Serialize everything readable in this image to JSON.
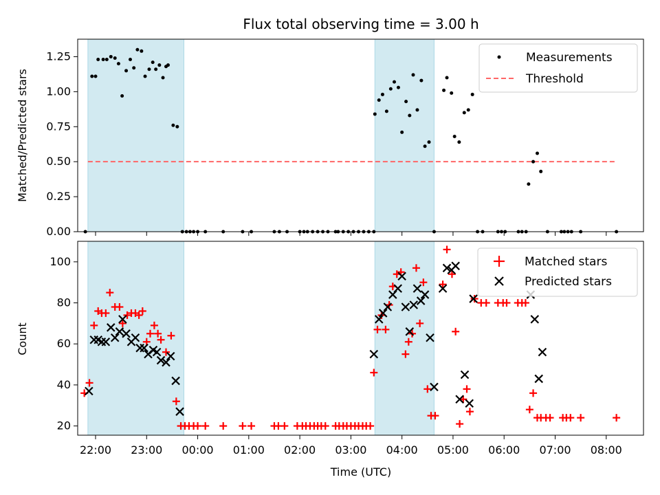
{
  "title": "Flux total observing time = 3.00 h",
  "colors": {
    "shade": "#add8e6",
    "threshold": "#ff6666",
    "matched": "#ff0000",
    "predicted": "#000000",
    "measurement": "#000000"
  },
  "chart_data": [
    {
      "type": "scatter",
      "ylabel": "Matched/Predicted stars",
      "xlim": [
        21.65,
        8.73
      ],
      "ylim": [
        0,
        1.375
      ],
      "yticks": [
        "0.00",
        "0.25",
        "0.50",
        "0.75",
        "1.00",
        "1.25"
      ],
      "legend": "top-right",
      "legend_entries": [
        "Measurements",
        "Threshold"
      ],
      "shaded_spans": [
        [
          21.85,
          23.73
        ],
        [
          3.47,
          4.63
        ]
      ],
      "threshold": {
        "name": "Threshold",
        "y": 0.5,
        "x_start": 21.85,
        "x_end": 8.2
      },
      "series": [
        {
          "name": "Measurements",
          "points": [
            [
              21.8,
              0.0
            ],
            [
              21.93,
              1.11
            ],
            [
              22.0,
              1.11
            ],
            [
              22.05,
              1.23
            ],
            [
              22.15,
              1.23
            ],
            [
              22.22,
              1.23
            ],
            [
              22.3,
              1.25
            ],
            [
              22.38,
              1.24
            ],
            [
              22.45,
              1.2
            ],
            [
              22.52,
              0.97
            ],
            [
              22.6,
              1.15
            ],
            [
              22.68,
              1.23
            ],
            [
              22.75,
              1.17
            ],
            [
              22.82,
              1.3
            ],
            [
              22.9,
              1.29
            ],
            [
              22.97,
              1.11
            ],
            [
              23.05,
              1.16
            ],
            [
              23.12,
              1.21
            ],
            [
              23.18,
              1.16
            ],
            [
              23.25,
              1.19
            ],
            [
              23.32,
              1.1
            ],
            [
              23.38,
              1.18
            ],
            [
              23.42,
              1.19
            ],
            [
              23.52,
              0.76
            ],
            [
              23.6,
              0.75
            ],
            [
              23.7,
              0.0
            ],
            [
              23.78,
              0.0
            ],
            [
              23.85,
              0.0
            ],
            [
              23.92,
              0.0
            ],
            [
              24.0,
              0.0
            ],
            [
              24.15,
              0.0
            ],
            [
              24.5,
              0.0
            ],
            [
              24.88,
              0.0
            ],
            [
              25.05,
              0.0
            ],
            [
              25.5,
              0.0
            ],
            [
              25.6,
              0.0
            ],
            [
              25.75,
              0.0
            ],
            [
              26.0,
              0.0
            ],
            [
              26.08,
              0.0
            ],
            [
              26.15,
              0.0
            ],
            [
              26.25,
              0.0
            ],
            [
              26.35,
              0.0
            ],
            [
              26.45,
              0.0
            ],
            [
              26.55,
              0.0
            ],
            [
              26.7,
              0.0
            ],
            [
              26.75,
              0.0
            ],
            [
              26.85,
              0.0
            ],
            [
              26.95,
              0.0
            ],
            [
              27.05,
              0.0
            ],
            [
              27.15,
              0.0
            ],
            [
              27.25,
              0.0
            ],
            [
              27.35,
              0.0
            ],
            [
              27.45,
              0.0
            ],
            [
              27.47,
              0.84
            ],
            [
              27.55,
              0.94
            ],
            [
              27.62,
              0.98
            ],
            [
              27.7,
              0.86
            ],
            [
              27.78,
              1.02
            ],
            [
              27.85,
              1.07
            ],
            [
              27.93,
              1.03
            ],
            [
              28.0,
              0.71
            ],
            [
              28.08,
              0.93
            ],
            [
              28.15,
              0.83
            ],
            [
              28.22,
              1.12
            ],
            [
              28.3,
              0.87
            ],
            [
              28.38,
              1.08
            ],
            [
              28.45,
              0.61
            ],
            [
              28.53,
              0.64
            ],
            [
              28.63,
              0.0
            ],
            [
              28.82,
              1.01
            ],
            [
              28.88,
              1.1
            ],
            [
              28.97,
              0.99
            ],
            [
              29.03,
              0.68
            ],
            [
              29.12,
              0.64
            ],
            [
              29.22,
              0.85
            ],
            [
              29.3,
              0.87
            ],
            [
              29.38,
              0.98
            ],
            [
              29.48,
              0.0
            ],
            [
              29.58,
              0.0
            ],
            [
              29.88,
              0.0
            ],
            [
              29.95,
              0.0
            ],
            [
              30.02,
              0.0
            ],
            [
              30.28,
              0.0
            ],
            [
              30.35,
              0.0
            ],
            [
              30.43,
              0.0
            ],
            [
              30.48,
              0.34
            ],
            [
              30.57,
              0.5
            ],
            [
              30.65,
              0.56
            ],
            [
              30.72,
              0.43
            ],
            [
              30.85,
              0.0
            ],
            [
              31.12,
              0.0
            ],
            [
              31.18,
              0.0
            ],
            [
              31.25,
              0.0
            ],
            [
              31.32,
              0.0
            ],
            [
              31.5,
              0.0
            ],
            [
              32.2,
              0.0
            ]
          ]
        }
      ]
    },
    {
      "type": "scatter",
      "ylabel": "Count",
      "xlabel": "Time (UTC)",
      "xlim": [
        21.65,
        8.73
      ],
      "ylim": [
        15.5,
        110
      ],
      "yticks": [
        "20",
        "40",
        "60",
        "80",
        "100"
      ],
      "xticks": [
        "22:00",
        "23:00",
        "00:00",
        "01:00",
        "02:00",
        "03:00",
        "04:00",
        "05:00",
        "06:00",
        "07:00",
        "08:00"
      ],
      "legend": "top-right",
      "legend_entries": [
        "Matched stars",
        "Predicted stars"
      ],
      "shaded_spans": [
        [
          21.85,
          23.73
        ],
        [
          3.47,
          4.63
        ]
      ],
      "series": [
        {
          "name": "Matched stars",
          "marker": "plus",
          "points": [
            [
              21.78,
              36
            ],
            [
              21.88,
              41
            ],
            [
              21.97,
              69
            ],
            [
              22.05,
              76
            ],
            [
              22.12,
              75
            ],
            [
              22.2,
              75
            ],
            [
              22.28,
              85
            ],
            [
              22.38,
              78
            ],
            [
              22.47,
              78
            ],
            [
              22.53,
              70
            ],
            [
              22.62,
              74
            ],
            [
              22.7,
              75
            ],
            [
              22.78,
              75
            ],
            [
              22.85,
              74
            ],
            [
              22.92,
              76
            ],
            [
              23.0,
              61
            ],
            [
              23.07,
              65
            ],
            [
              23.15,
              69
            ],
            [
              23.22,
              65
            ],
            [
              23.28,
              62
            ],
            [
              23.38,
              56
            ],
            [
              23.48,
              64
            ],
            [
              23.58,
              32
            ],
            [
              23.67,
              20
            ],
            [
              23.75,
              20
            ],
            [
              23.83,
              20
            ],
            [
              23.92,
              20
            ],
            [
              24.0,
              20
            ],
            [
              24.15,
              20
            ],
            [
              24.5,
              20
            ],
            [
              24.88,
              20
            ],
            [
              25.05,
              20
            ],
            [
              25.5,
              20
            ],
            [
              25.58,
              20
            ],
            [
              25.7,
              20
            ],
            [
              25.95,
              20
            ],
            [
              26.05,
              20
            ],
            [
              26.12,
              20
            ],
            [
              26.2,
              20
            ],
            [
              26.28,
              20
            ],
            [
              26.35,
              20
            ],
            [
              26.42,
              20
            ],
            [
              26.5,
              20
            ],
            [
              26.7,
              20
            ],
            [
              26.77,
              20
            ],
            [
              26.85,
              20
            ],
            [
              26.92,
              20
            ],
            [
              27.0,
              20
            ],
            [
              27.08,
              20
            ],
            [
              27.15,
              20
            ],
            [
              27.23,
              20
            ],
            [
              27.3,
              20
            ],
            [
              27.38,
              20
            ],
            [
              27.45,
              46
            ],
            [
              27.52,
              67
            ],
            [
              27.6,
              74
            ],
            [
              27.68,
              67
            ],
            [
              27.75,
              79
            ],
            [
              27.82,
              88
            ],
            [
              27.9,
              94
            ],
            [
              27.98,
              95
            ],
            [
              28.07,
              55
            ],
            [
              28.13,
              61
            ],
            [
              28.2,
              65
            ],
            [
              28.28,
              97
            ],
            [
              28.35,
              70
            ],
            [
              28.42,
              90
            ],
            [
              28.5,
              38
            ],
            [
              28.57,
              25
            ],
            [
              28.65,
              25
            ],
            [
              28.8,
              89
            ],
            [
              28.88,
              106
            ],
            [
              28.98,
              94
            ],
            [
              29.05,
              66
            ],
            [
              29.13,
              21
            ],
            [
              29.2,
              33
            ],
            [
              29.27,
              38
            ],
            [
              29.33,
              27
            ],
            [
              29.42,
              82
            ],
            [
              29.55,
              80
            ],
            [
              29.65,
              80
            ],
            [
              29.88,
              80
            ],
            [
              29.98,
              80
            ],
            [
              30.05,
              80
            ],
            [
              30.27,
              80
            ],
            [
              30.35,
              80
            ],
            [
              30.42,
              80
            ],
            [
              30.5,
              28
            ],
            [
              30.57,
              36
            ],
            [
              30.65,
              24
            ],
            [
              30.72,
              24
            ],
            [
              30.82,
              24
            ],
            [
              30.9,
              24
            ],
            [
              31.15,
              24
            ],
            [
              31.22,
              24
            ],
            [
              31.3,
              24
            ],
            [
              31.5,
              24
            ],
            [
              32.2,
              24
            ]
          ]
        },
        {
          "name": "Predicted stars",
          "marker": "x",
          "points": [
            [
              21.87,
              37
            ],
            [
              21.97,
              62
            ],
            [
              22.05,
              62
            ],
            [
              22.12,
              61
            ],
            [
              22.2,
              61
            ],
            [
              22.3,
              68
            ],
            [
              22.38,
              63
            ],
            [
              22.47,
              66
            ],
            [
              22.53,
              72
            ],
            [
              22.6,
              65
            ],
            [
              22.7,
              61
            ],
            [
              22.78,
              63
            ],
            [
              22.87,
              58
            ],
            [
              22.95,
              58
            ],
            [
              23.03,
              55
            ],
            [
              23.13,
              57
            ],
            [
              23.2,
              56
            ],
            [
              23.28,
              52
            ],
            [
              23.38,
              51
            ],
            [
              23.47,
              54
            ],
            [
              23.57,
              42
            ],
            [
              23.65,
              27
            ],
            [
              27.45,
              55
            ],
            [
              27.55,
              72
            ],
            [
              27.63,
              75
            ],
            [
              27.72,
              78
            ],
            [
              27.82,
              84
            ],
            [
              27.92,
              87
            ],
            [
              28.0,
              93
            ],
            [
              28.07,
              78
            ],
            [
              28.15,
              66
            ],
            [
              28.23,
              79
            ],
            [
              28.3,
              87
            ],
            [
              28.37,
              81
            ],
            [
              28.45,
              84
            ],
            [
              28.55,
              63
            ],
            [
              28.63,
              39
            ],
            [
              28.8,
              87
            ],
            [
              28.88,
              97
            ],
            [
              28.97,
              96
            ],
            [
              29.05,
              98
            ],
            [
              29.13,
              33
            ],
            [
              29.23,
              45
            ],
            [
              29.32,
              31
            ],
            [
              29.4,
              82
            ],
            [
              30.52,
              84
            ],
            [
              30.6,
              72
            ],
            [
              30.68,
              43
            ],
            [
              30.75,
              56
            ]
          ]
        }
      ]
    }
  ]
}
